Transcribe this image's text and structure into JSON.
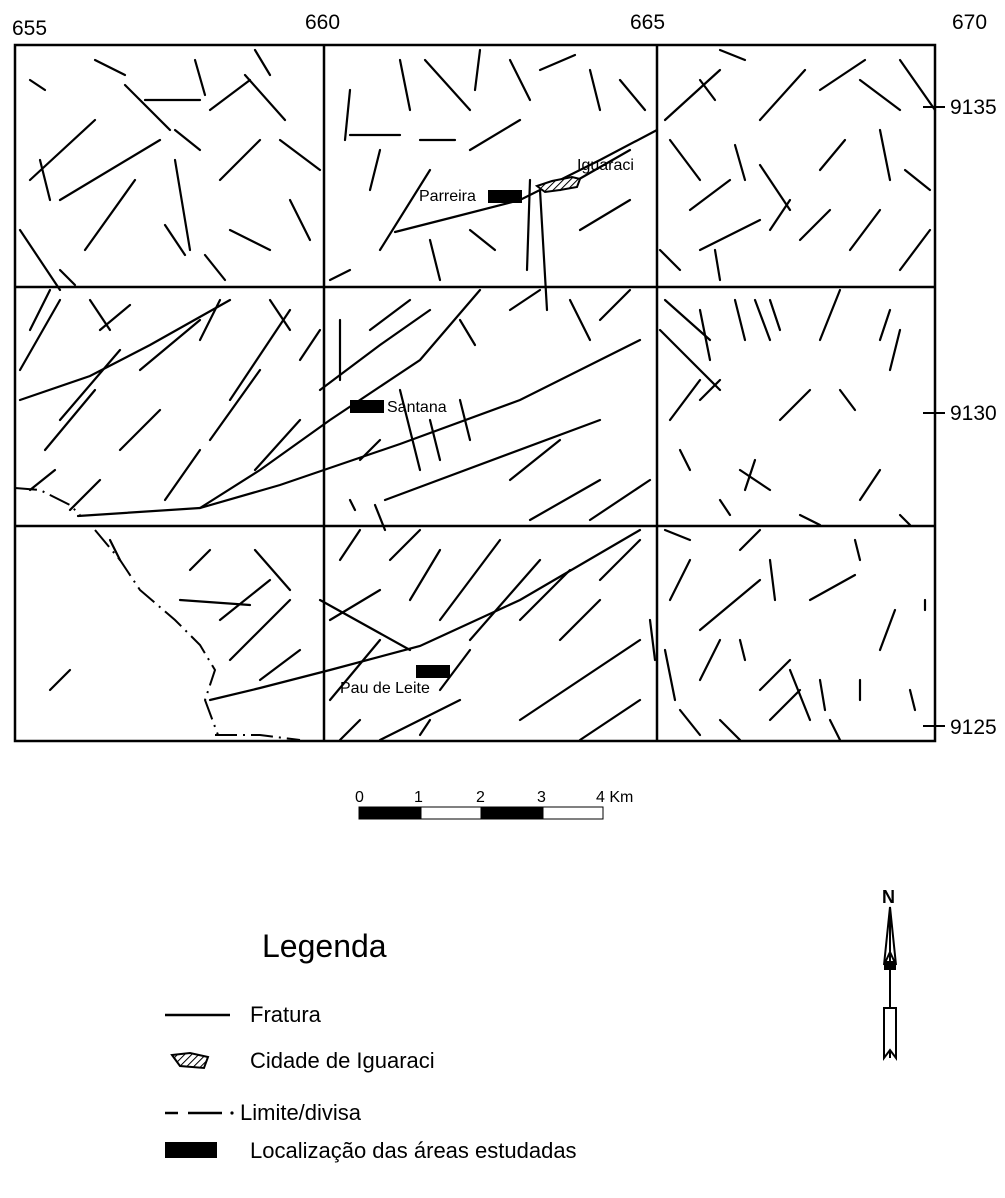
{
  "map": {
    "x_ticks": [
      "655",
      "660",
      "665",
      "670"
    ],
    "y_ticks": [
      "9135",
      "9130",
      "9125"
    ],
    "places": {
      "parreira": "Parreira",
      "iguaraci": "Iguaraci",
      "santana": "Santana",
      "pau_de_leite": "Pau de Leite"
    },
    "scale_bar": {
      "labels": [
        "0",
        "1",
        "2",
        "3",
        "4 Km"
      ]
    },
    "north_arrow": "N",
    "colors": {
      "line": "#000000",
      "background": "#ffffff"
    }
  },
  "legend": {
    "title": "Legenda",
    "items": [
      {
        "label": "Fratura",
        "symbol": "solid-line-icon"
      },
      {
        "label": "Cidade de Iguaraci",
        "symbol": "hatched-polygon-icon"
      },
      {
        "label": "Limite/divisa",
        "symbol": "dash-dot-line-icon"
      },
      {
        "label": "Localização das áreas estudadas",
        "symbol": "filled-rectangle-icon"
      }
    ]
  }
}
